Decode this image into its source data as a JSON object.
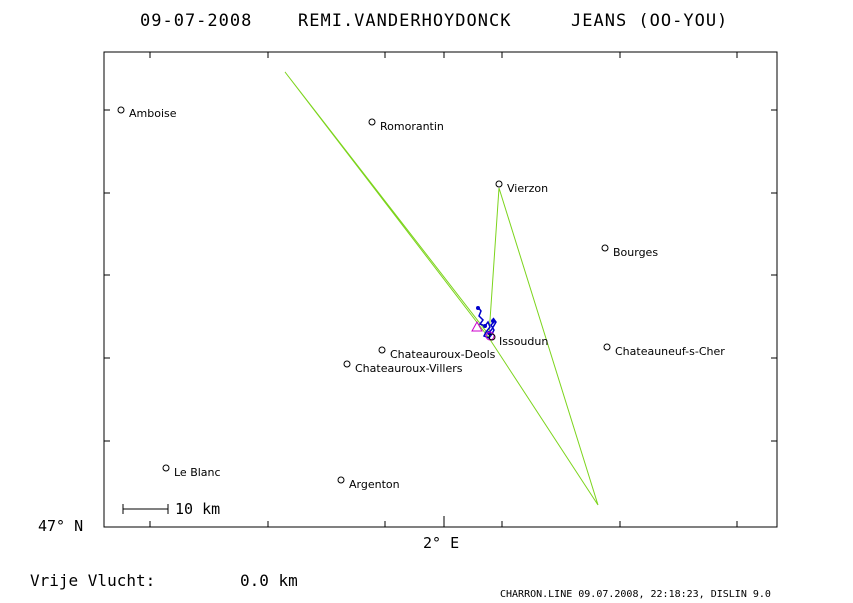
{
  "title": {
    "date": "09-07-2008",
    "pilot": "REMI.VANDERHOYDONCK",
    "glider": "JEANS (OO-YOU)"
  },
  "axes": {
    "lat_label": "47° N",
    "lon_label": "2° E"
  },
  "scale_bar": {
    "label": "10 km",
    "length_km": 10
  },
  "cities": [
    {
      "name": "Amboise"
    },
    {
      "name": "Romorantin"
    },
    {
      "name": "Vierzon"
    },
    {
      "name": "Bourges"
    },
    {
      "name": "Issoudun"
    },
    {
      "name": "Chateauneuf-s-Cher"
    },
    {
      "name": "Chateauroux-Deols"
    },
    {
      "name": "Chateauroux-Villers"
    },
    {
      "name": "Le Blanc"
    },
    {
      "name": "Argenton"
    }
  ],
  "footer": {
    "free_flight_label": "Vrije Vlucht:",
    "free_flight_value": "0.0 km",
    "file_info": "CHARRON.LINE 09.07.2008, 22:18:23, DISLIN 9.0"
  },
  "colors": {
    "task_line": "#7cd41c",
    "track": "#0000cc",
    "start_marker": "#cc00cc"
  }
}
